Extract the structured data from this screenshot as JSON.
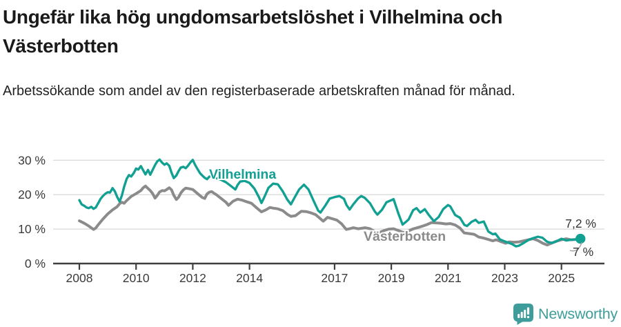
{
  "header": {
    "title": "Ungefär lika hög ungdomsarbetslöshet i Vilhelmina och Västerbotten",
    "subtitle": "Arbetssökande som andel av den registerbaserade arbetskraften månad för månad."
  },
  "footer": {
    "brand": "Newsworthy",
    "logo_icon": "newsworthy-speech-bubble-barchart-icon"
  },
  "colors": {
    "series_vilhelmina": "#12a093",
    "series_vasterbotten": "#8b8b8b",
    "brand_teal": "#3e9d9b",
    "grid": "#dcdcdc",
    "axis": "#3f3f3f",
    "text_dark": "#1a1a1a",
    "annotation": "#333333"
  },
  "chart_data": {
    "type": "line",
    "title": "Ungefär lika hög ungdomsarbetslöshet i Vilhelmina och Västerbotten",
    "subtitle": "Arbetssökande som andel av den registerbaserade arbetskraften månad för månad.",
    "unit": "%",
    "grid": "horizontal",
    "legend": "inline-labels",
    "x_axis": {
      "ticks": [
        2008,
        2010,
        2012,
        2014,
        2017,
        2019,
        2021,
        2023,
        2025
      ],
      "tick_labels": [
        "2008",
        "2010",
        "2012",
        "2014",
        "2017",
        "2019",
        "2021",
        "2023",
        "2025"
      ],
      "range": [
        2007.9,
        2026.4
      ]
    },
    "y_axis": {
      "ticks": [
        0,
        10,
        20,
        30
      ],
      "tick_labels": [
        "0 %",
        "10 %",
        "20 %",
        "30 %"
      ],
      "range": [
        0,
        32
      ]
    },
    "series": [
      {
        "name": "Västerbotten",
        "color": "#8b8b8b",
        "stroke_width": 4,
        "end_label": "7 %",
        "end_value": 7.0,
        "points": [
          [
            2008.0,
            12.4
          ],
          [
            2008.17,
            11.7
          ],
          [
            2008.33,
            10.9
          ],
          [
            2008.5,
            9.9
          ],
          [
            2008.58,
            10.3
          ],
          [
            2008.67,
            11.3
          ],
          [
            2008.83,
            12.9
          ],
          [
            2009.0,
            14.4
          ],
          [
            2009.17,
            15.6
          ],
          [
            2009.33,
            16.5
          ],
          [
            2009.42,
            17.4
          ],
          [
            2009.5,
            17.8
          ],
          [
            2009.58,
            17.5
          ],
          [
            2009.67,
            18.3
          ],
          [
            2009.83,
            19.5
          ],
          [
            2010.0,
            20.3
          ],
          [
            2010.17,
            21.2
          ],
          [
            2010.25,
            22.0
          ],
          [
            2010.33,
            22.5
          ],
          [
            2010.42,
            21.8
          ],
          [
            2010.5,
            21.2
          ],
          [
            2010.58,
            20.4
          ],
          [
            2010.67,
            19.0
          ],
          [
            2010.75,
            19.8
          ],
          [
            2010.83,
            20.8
          ],
          [
            2010.92,
            21.2
          ],
          [
            2011.0,
            21.1
          ],
          [
            2011.08,
            21.5
          ],
          [
            2011.17,
            22.0
          ],
          [
            2011.25,
            21.4
          ],
          [
            2011.33,
            19.8
          ],
          [
            2011.42,
            18.6
          ],
          [
            2011.5,
            19.3
          ],
          [
            2011.58,
            20.5
          ],
          [
            2011.67,
            21.4
          ],
          [
            2011.75,
            21.9
          ],
          [
            2011.83,
            21.8
          ],
          [
            2012.0,
            21.5
          ],
          [
            2012.17,
            20.3
          ],
          [
            2012.33,
            19.2
          ],
          [
            2012.42,
            18.9
          ],
          [
            2012.5,
            20.2
          ],
          [
            2012.58,
            20.7
          ],
          [
            2012.67,
            20.9
          ],
          [
            2012.75,
            20.4
          ],
          [
            2012.83,
            20.0
          ],
          [
            2013.0,
            18.9
          ],
          [
            2013.17,
            17.8
          ],
          [
            2013.26,
            16.9
          ],
          [
            2013.42,
            18.1
          ],
          [
            2013.58,
            18.7
          ],
          [
            2013.75,
            18.4
          ],
          [
            2013.92,
            17.9
          ],
          [
            2014.07,
            17.5
          ],
          [
            2014.25,
            16.2
          ],
          [
            2014.42,
            15.0
          ],
          [
            2014.58,
            15.6
          ],
          [
            2014.72,
            16.3
          ],
          [
            2014.83,
            16.1
          ],
          [
            2015.0,
            15.9
          ],
          [
            2015.17,
            15.4
          ],
          [
            2015.33,
            14.3
          ],
          [
            2015.46,
            13.7
          ],
          [
            2015.62,
            13.9
          ],
          [
            2015.83,
            15.2
          ],
          [
            2016.0,
            15.1
          ],
          [
            2016.17,
            14.7
          ],
          [
            2016.33,
            14.2
          ],
          [
            2016.5,
            13.0
          ],
          [
            2016.6,
            12.3
          ],
          [
            2016.75,
            13.4
          ],
          [
            2016.92,
            13.0
          ],
          [
            2017.08,
            12.6
          ],
          [
            2017.25,
            11.5
          ],
          [
            2017.41,
            9.9
          ],
          [
            2017.58,
            10.2
          ],
          [
            2017.66,
            10.4
          ],
          [
            2017.83,
            10.1
          ],
          [
            2018.08,
            10.4
          ],
          [
            2018.25,
            10.1
          ],
          [
            2018.42,
            9.3
          ],
          [
            2018.58,
            9.0
          ],
          [
            2018.75,
            9.6
          ],
          [
            2018.92,
            10.0
          ],
          [
            2019.08,
            10.1
          ],
          [
            2019.25,
            9.6
          ],
          [
            2019.42,
            9.0
          ],
          [
            2019.58,
            9.4
          ],
          [
            2019.75,
            10.0
          ],
          [
            2019.92,
            10.4
          ],
          [
            2020.08,
            10.8
          ],
          [
            2020.25,
            11.3
          ],
          [
            2020.42,
            11.9
          ],
          [
            2020.58,
            11.8
          ],
          [
            2020.75,
            11.7
          ],
          [
            2020.92,
            11.5
          ],
          [
            2021.08,
            11.6
          ],
          [
            2021.25,
            11.2
          ],
          [
            2021.42,
            10.3
          ],
          [
            2021.57,
            8.9
          ],
          [
            2021.75,
            8.7
          ],
          [
            2021.92,
            8.5
          ],
          [
            2022.08,
            7.7
          ],
          [
            2022.25,
            7.4
          ],
          [
            2022.42,
            7.0
          ],
          [
            2022.58,
            6.6
          ],
          [
            2022.7,
            6.9
          ],
          [
            2022.83,
            6.5
          ],
          [
            2023.03,
            5.9
          ],
          [
            2023.15,
            6.3
          ],
          [
            2023.33,
            6.2
          ],
          [
            2023.5,
            6.3
          ],
          [
            2023.67,
            6.6
          ],
          [
            2023.83,
            6.9
          ],
          [
            2024.0,
            7.2
          ],
          [
            2024.17,
            6.7
          ],
          [
            2024.34,
            5.9
          ],
          [
            2024.5,
            5.4
          ],
          [
            2024.67,
            6.0
          ],
          [
            2024.83,
            6.5
          ],
          [
            2025.0,
            6.9
          ],
          [
            2025.17,
            7.2
          ],
          [
            2025.33,
            6.9
          ],
          [
            2025.5,
            7.0
          ],
          [
            2025.67,
            7.0
          ]
        ]
      },
      {
        "name": "Vilhelmina",
        "color": "#12a093",
        "stroke_width": 3.4,
        "end_label": "7,2 %",
        "end_value": 7.2,
        "end_dot": true,
        "points": [
          [
            2008.0,
            18.4
          ],
          [
            2008.08,
            17.2
          ],
          [
            2008.17,
            16.8
          ],
          [
            2008.25,
            16.3
          ],
          [
            2008.33,
            16.1
          ],
          [
            2008.42,
            16.5
          ],
          [
            2008.5,
            15.9
          ],
          [
            2008.58,
            16.3
          ],
          [
            2008.67,
            17.6
          ],
          [
            2008.75,
            18.8
          ],
          [
            2008.83,
            19.6
          ],
          [
            2008.92,
            20.3
          ],
          [
            2009.0,
            20.7
          ],
          [
            2009.08,
            20.6
          ],
          [
            2009.17,
            21.9
          ],
          [
            2009.25,
            21.0
          ],
          [
            2009.33,
            19.4
          ],
          [
            2009.42,
            18.0
          ],
          [
            2009.5,
            19.8
          ],
          [
            2009.58,
            22.3
          ],
          [
            2009.67,
            24.6
          ],
          [
            2009.75,
            25.7
          ],
          [
            2009.83,
            25.3
          ],
          [
            2009.92,
            26.3
          ],
          [
            2010.0,
            27.6
          ],
          [
            2010.08,
            27.3
          ],
          [
            2010.17,
            28.3
          ],
          [
            2010.25,
            27.1
          ],
          [
            2010.33,
            25.9
          ],
          [
            2010.42,
            27.2
          ],
          [
            2010.5,
            25.8
          ],
          [
            2010.58,
            27.1
          ],
          [
            2010.67,
            28.6
          ],
          [
            2010.75,
            29.7
          ],
          [
            2010.83,
            30.2
          ],
          [
            2010.92,
            29.3
          ],
          [
            2011.0,
            28.7
          ],
          [
            2011.08,
            29.1
          ],
          [
            2011.17,
            28.4
          ],
          [
            2011.25,
            26.4
          ],
          [
            2011.33,
            24.8
          ],
          [
            2011.42,
            25.6
          ],
          [
            2011.5,
            26.9
          ],
          [
            2011.58,
            27.9
          ],
          [
            2011.67,
            28.1
          ],
          [
            2011.75,
            27.7
          ],
          [
            2011.83,
            28.4
          ],
          [
            2011.92,
            29.4
          ],
          [
            2012.0,
            30.1
          ],
          [
            2012.08,
            28.7
          ],
          [
            2012.17,
            27.4
          ],
          [
            2012.25,
            26.3
          ],
          [
            2012.33,
            25.6
          ],
          [
            2012.42,
            24.9
          ],
          [
            2012.5,
            24.5
          ],
          [
            2012.58,
            25.2
          ],
          [
            2012.67,
            25.6
          ],
          [
            2012.75,
            25.1
          ],
          [
            2012.83,
            24.8
          ],
          [
            2013.0,
            24.3
          ],
          [
            2013.17,
            23.6
          ],
          [
            2013.33,
            22.6
          ],
          [
            2013.5,
            21.5
          ],
          [
            2013.58,
            22.8
          ],
          [
            2013.67,
            23.8
          ],
          [
            2013.83,
            24.0
          ],
          [
            2014.0,
            23.4
          ],
          [
            2014.17,
            21.8
          ],
          [
            2014.33,
            19.3
          ],
          [
            2014.42,
            17.6
          ],
          [
            2014.5,
            18.9
          ],
          [
            2014.67,
            22.0
          ],
          [
            2014.83,
            23.2
          ],
          [
            2015.0,
            23.0
          ],
          [
            2015.17,
            21.0
          ],
          [
            2015.33,
            18.6
          ],
          [
            2015.46,
            17.2
          ],
          [
            2015.58,
            19.0
          ],
          [
            2015.75,
            21.5
          ],
          [
            2015.92,
            22.9
          ],
          [
            2016.08,
            21.5
          ],
          [
            2016.25,
            18.4
          ],
          [
            2016.42,
            15.4
          ],
          [
            2016.5,
            14.8
          ],
          [
            2016.67,
            16.8
          ],
          [
            2016.83,
            18.9
          ],
          [
            2017.0,
            19.3
          ],
          [
            2017.17,
            19.6
          ],
          [
            2017.33,
            18.8
          ],
          [
            2017.42,
            17.0
          ],
          [
            2017.53,
            15.7
          ],
          [
            2017.67,
            17.3
          ],
          [
            2017.83,
            18.9
          ],
          [
            2017.94,
            19.6
          ],
          [
            2018.06,
            19.1
          ],
          [
            2018.25,
            17.5
          ],
          [
            2018.42,
            15.1
          ],
          [
            2018.51,
            14.2
          ],
          [
            2018.67,
            15.6
          ],
          [
            2018.83,
            17.8
          ],
          [
            2019.0,
            18.4
          ],
          [
            2019.08,
            18.7
          ],
          [
            2019.25,
            14.5
          ],
          [
            2019.4,
            11.3
          ],
          [
            2019.5,
            12.0
          ],
          [
            2019.61,
            12.8
          ],
          [
            2019.77,
            15.5
          ],
          [
            2019.89,
            16.1
          ],
          [
            2020.02,
            14.8
          ],
          [
            2020.18,
            15.8
          ],
          [
            2020.33,
            14.0
          ],
          [
            2020.5,
            12.3
          ],
          [
            2020.67,
            13.5
          ],
          [
            2020.83,
            15.8
          ],
          [
            2021.0,
            17.0
          ],
          [
            2021.08,
            16.6
          ],
          [
            2021.25,
            14.1
          ],
          [
            2021.42,
            13.3
          ],
          [
            2021.58,
            11.2
          ],
          [
            2021.67,
            10.9
          ],
          [
            2021.83,
            12.1
          ],
          [
            2021.97,
            12.7
          ],
          [
            2022.08,
            11.8
          ],
          [
            2022.26,
            12.2
          ],
          [
            2022.42,
            9.3
          ],
          [
            2022.58,
            8.5
          ],
          [
            2022.67,
            8.7
          ],
          [
            2022.83,
            7.0
          ],
          [
            2022.95,
            6.6
          ],
          [
            2023.08,
            6.2
          ],
          [
            2023.25,
            5.7
          ],
          [
            2023.4,
            5.0
          ],
          [
            2023.5,
            5.2
          ],
          [
            2023.67,
            6.0
          ],
          [
            2023.83,
            6.8
          ],
          [
            2023.97,
            7.3
          ],
          [
            2024.17,
            7.8
          ],
          [
            2024.33,
            7.5
          ],
          [
            2024.5,
            6.3
          ],
          [
            2024.67,
            6.0
          ],
          [
            2024.83,
            6.5
          ],
          [
            2025.0,
            7.2
          ],
          [
            2025.17,
            6.7
          ],
          [
            2025.33,
            6.9
          ],
          [
            2025.5,
            7.0
          ],
          [
            2025.67,
            7.2
          ]
        ]
      }
    ],
    "annotations": {
      "vilhelmina_label": "Vilhelmina",
      "vasterbotten_label": "Västerbotten",
      "end_label_vilhelmina": "7,2 %",
      "end_label_vasterbotten": "7 %"
    }
  }
}
